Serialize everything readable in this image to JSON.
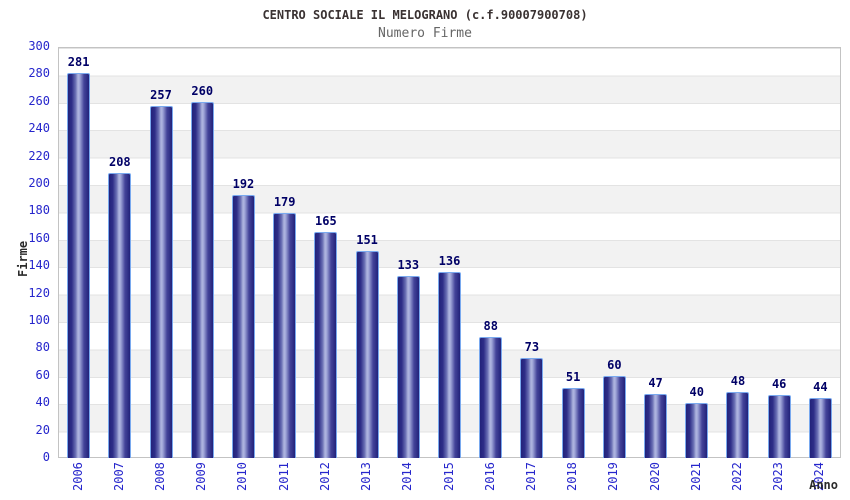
{
  "header": {
    "title": "CENTRO SOCIALE IL MELOGRANO (c.f.90007900708)",
    "subtitle": "Numero Firme"
  },
  "chart_data": {
    "type": "bar",
    "title": "CENTRO SOCIALE IL MELOGRANO (c.f.90007900708)",
    "subtitle": "Numero Firme",
    "categories": [
      "2006",
      "2007",
      "2008",
      "2009",
      "2010",
      "2011",
      "2012",
      "2013",
      "2014",
      "2015",
      "2016",
      "2017",
      "2018",
      "2019",
      "2020",
      "2021",
      "2022",
      "2023",
      "2024"
    ],
    "values": [
      281,
      208,
      257,
      260,
      192,
      179,
      165,
      151,
      133,
      136,
      88,
      73,
      51,
      60,
      47,
      40,
      48,
      46,
      44
    ],
    "xlabel": "Anno",
    "ylabel": "Firme",
    "ylim": [
      0,
      300
    ],
    "ytick_step": 20,
    "grid": "horizontal gridlines with alternating white/gray bands every 20 units",
    "legend": "none",
    "colors": {
      "bar_dark": "#22227a",
      "bar_highlight": "#b0b6e0",
      "bar_border": "#79a9ef",
      "axis_tick_label": "#2626cc",
      "value_label": "#000066",
      "title": "#3a3232",
      "subtitle": "#666666",
      "band_gray": "#f2f2f2",
      "gridline": "#e3e3e3",
      "plot_border": "#c3c3c3"
    }
  }
}
